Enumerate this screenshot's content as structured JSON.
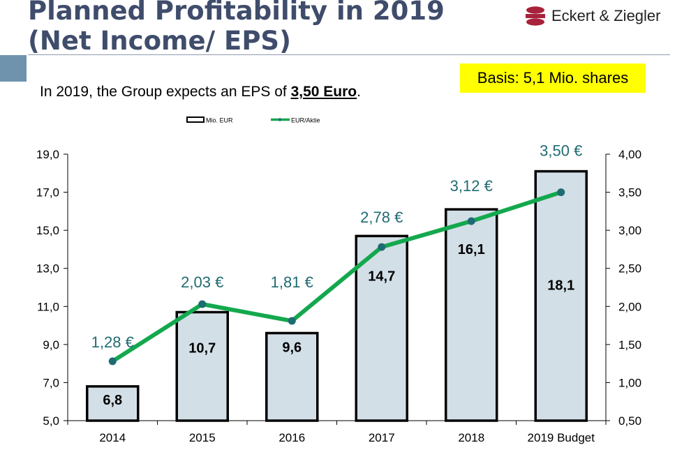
{
  "header": {
    "title_line1": "Planned Profitability in 2019",
    "title_line2": "(Net Income/ EPS)",
    "logo_text": "Eckert & Ziegler",
    "basis_note": "Basis: 5,1 Mio. shares",
    "subtitle_prefix": "In 2019, the Group expects an EPS of ",
    "subtitle_value": "3,50 Euro",
    "subtitle_suffix": "."
  },
  "colors": {
    "title": "#3f4c6b",
    "bar_fill": "#d3dfe7",
    "bar_stroke": "#000000",
    "line": "#14a84e",
    "marker": "#1f6b73",
    "eps_label": "#1f6b73",
    "basis_bg": "#ffff00",
    "accent_square": "#6f93ad"
  },
  "chart_data": {
    "type": "bar",
    "categories": [
      "2014",
      "2015",
      "2016",
      "2017",
      "2018",
      "2019 Budget"
    ],
    "series": [
      {
        "name": "Mio. EUR",
        "type": "bar",
        "axis": "left",
        "values": [
          6.8,
          10.7,
          9.6,
          14.7,
          16.1,
          18.1
        ],
        "labels": [
          "6,8",
          "10,7",
          "9,6",
          "14,7",
          "16,1",
          "18,1"
        ]
      },
      {
        "name": "EUR/Aktie",
        "type": "line",
        "axis": "right",
        "values": [
          1.28,
          2.03,
          1.81,
          2.78,
          3.12,
          3.5
        ],
        "labels": [
          "1,28 €",
          "2,03 €",
          "1,81 €",
          "2,78 €",
          "3,12 €",
          "3,50 €"
        ]
      }
    ],
    "y_left": {
      "min": 5.0,
      "max": 19.0,
      "ticks": [
        5.0,
        7.0,
        9.0,
        11.0,
        13.0,
        15.0,
        17.0,
        19.0
      ],
      "tick_labels": [
        "5,0",
        "7,0",
        "9,0",
        "11,0",
        "13,0",
        "15,0",
        "17,0",
        "19,0"
      ]
    },
    "y_right": {
      "min": 0.5,
      "max": 4.0,
      "ticks": [
        0.5,
        1.0,
        1.5,
        2.0,
        2.5,
        3.0,
        3.5,
        4.0
      ],
      "tick_labels": [
        "0,50",
        "1,00",
        "1,50",
        "2,00",
        "2,50",
        "3,00",
        "3,50",
        "4,00"
      ]
    },
    "legend_position": "top",
    "grid": false,
    "title": "",
    "xlabel": "",
    "ylabel": ""
  }
}
